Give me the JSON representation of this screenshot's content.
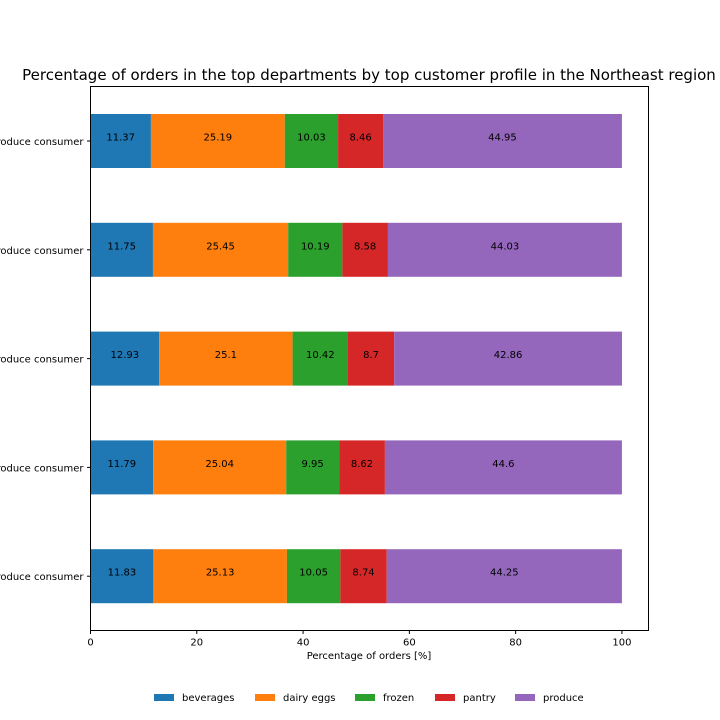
{
  "chart_data": {
    "type": "bar",
    "orientation": "horizontal-stacked",
    "title": "Percentage of orders in the top departments by top customer profile in the Northeast region",
    "xlabel": "Percentage of orders [%]",
    "ylabel": "",
    "xlim": [
      0,
      105
    ],
    "xticks": [
      0,
      20,
      40,
      60,
      80,
      100
    ],
    "grid": false,
    "legend_position": "bottom-center",
    "categories": [
      "produce consumer",
      "produce consumer",
      "produce consumer",
      "produce consumer",
      "produce consumer"
    ],
    "series": [
      {
        "name": "beverages",
        "color": "#1f77b4",
        "values": [
          11.37,
          11.75,
          12.93,
          11.79,
          11.83
        ]
      },
      {
        "name": "dairy eggs",
        "color": "#ff7f0e",
        "values": [
          25.19,
          25.45,
          25.1,
          25.04,
          25.13
        ]
      },
      {
        "name": "frozen",
        "color": "#2ca02c",
        "values": [
          10.03,
          10.19,
          10.42,
          9.95,
          10.05
        ]
      },
      {
        "name": "pantry",
        "color": "#d62728",
        "values": [
          8.46,
          8.58,
          8.7,
          8.62,
          8.74
        ]
      },
      {
        "name": "produce",
        "color": "#9467bd",
        "values": [
          44.95,
          44.03,
          42.86,
          44.6,
          44.25
        ]
      }
    ]
  }
}
